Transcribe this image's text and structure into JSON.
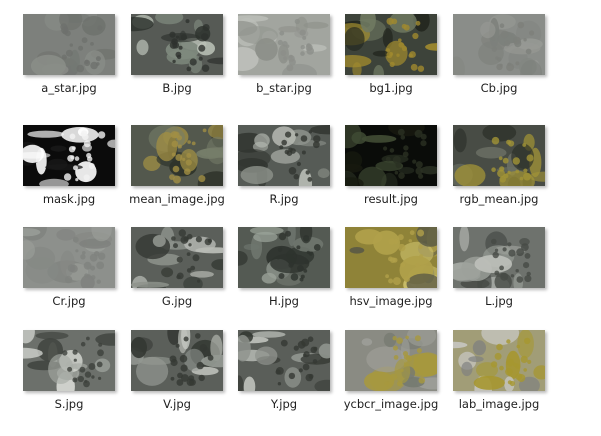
{
  "files": [
    {
      "name": "a_star.jpg",
      "bg": "#7d807c",
      "tones": [
        "#6e716d",
        "#8a8d88",
        "#747873"
      ]
    },
    {
      "name": "B.jpg",
      "bg": "#565a55",
      "tones": [
        "#2e322e",
        "#7f8a7e",
        "#b9c0b6"
      ]
    },
    {
      "name": "b_star.jpg",
      "bg": "#a2a59f",
      "tones": [
        "#8c8f89",
        "#bdbfba",
        "#949791"
      ]
    },
    {
      "name": "bg1.jpg",
      "bg": "#3d433a",
      "tones": [
        "#a08a2e",
        "#23271f",
        "#707a62"
      ]
    },
    {
      "name": "Cb.jpg",
      "bg": "#8a8d89",
      "tones": [
        "#7d807b",
        "#979a95",
        "#838682"
      ]
    },
    {
      "name": "mask.jpg",
      "bg": "#0b0b0b",
      "tones": [
        "#f3f3f3",
        "#ffffff",
        "#1a1a1a"
      ]
    },
    {
      "name": "mean_image.jpg",
      "bg": "#53584d",
      "tones": [
        "#a18f43",
        "#2f342b",
        "#767d69"
      ]
    },
    {
      "name": "R.jpg",
      "bg": "#565b56",
      "tones": [
        "#323631",
        "#8d928b",
        "#b6bab3"
      ]
    },
    {
      "name": "result.jpg",
      "bg": "#0a0c09",
      "tones": [
        "#2a3123",
        "#3f4a33",
        "#17190f"
      ]
    },
    {
      "name": "rgb_mean.jpg",
      "bg": "#484c45",
      "tones": [
        "#a19336",
        "#2b2f28",
        "#6b7065"
      ]
    },
    {
      "name": "Cr.jpg",
      "bg": "#8d908c",
      "tones": [
        "#7f827e",
        "#9ca09b",
        "#868985"
      ]
    },
    {
      "name": "G.jpg",
      "bg": "#5b5f5a",
      "tones": [
        "#363a35",
        "#8e938c",
        "#b9bcb6"
      ]
    },
    {
      "name": "H.jpg",
      "bg": "#545a53",
      "tones": [
        "#2e332e",
        "#6f766e",
        "#9ba39a"
      ]
    },
    {
      "name": "hsv_image.jpg",
      "bg": "#8f8338",
      "tones": [
        "#b0a04a",
        "#5b5a45",
        "#cfc36d"
      ]
    },
    {
      "name": "L.jpg",
      "bg": "#6e726d",
      "tones": [
        "#464a45",
        "#9da19b",
        "#c0c3bd"
      ]
    },
    {
      "name": "S.jpg",
      "bg": "#6c706b",
      "tones": [
        "#3d413c",
        "#a6aaa4",
        "#d7dad4"
      ]
    },
    {
      "name": "V.jpg",
      "bg": "#5b5f5a",
      "tones": [
        "#343833",
        "#949993",
        "#c3c6c0"
      ]
    },
    {
      "name": "Y.jpg",
      "bg": "#5a5e59",
      "tones": [
        "#343833",
        "#8f948e",
        "#bcbfb9"
      ]
    },
    {
      "name": "ycbcr_image.jpg",
      "bg": "#8a8b83",
      "tones": [
        "#a7993d",
        "#9fa09a",
        "#767a70"
      ]
    },
    {
      "name": "lab_image.jpg",
      "bg": "#a19d77",
      "tones": [
        "#a6972f",
        "#c7c7c2",
        "#7f8080"
      ]
    }
  ]
}
